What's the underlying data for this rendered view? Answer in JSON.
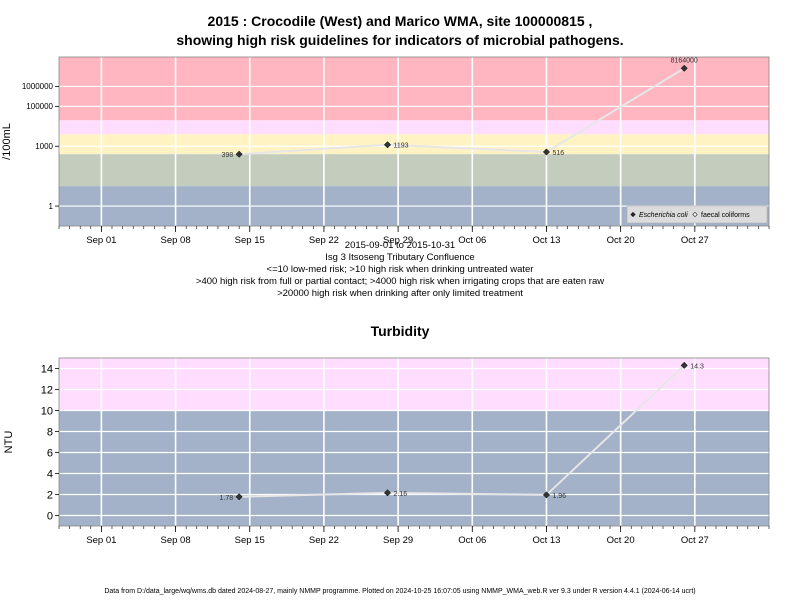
{
  "page": {
    "title_line1": "2015 : Crocodile (West) and Marico WMA, site 100000815 ,",
    "title_line2": "showing high risk guidelines for indicators of microbial pathogens.",
    "caption_lines": [
      "2015-09-01 to 2015-10-31",
      "Isg 3 Itsoseng Tributary Confluence",
      "<=10 low-med risk; >10 high risk when drinking untreated water",
      ">400 high risk from full or partial contact; >4000 high risk when irrigating crops that are eaten raw",
      ">20000 high risk when drinking after only limited treatment"
    ],
    "footer": "Data from D:/data_large/wq/wms.db dated 2024-08-27, mainly NMMP programme. Plotted on 2024-10-25 16:07:05 using NMMP_WMA_web.R ver 9.3 under R version 4.4.1 (2024-06-14 ucrt)"
  },
  "colors": {
    "band_red": "#ffb6c1",
    "band_pink": "#ffddff",
    "band_lightpink": "#fbe7f1",
    "band_yellow": "#fff3c4",
    "band_green": "#c3ccbd",
    "band_blue": "#a3b2c9",
    "series_line": "#e6e6e6",
    "marker": "#333333",
    "grid": "#ffffff"
  },
  "chart_data": [
    {
      "type": "line",
      "title": "",
      "xlabel": "",
      "ylabel": "/100mL",
      "yscale": "log",
      "ylim": [
        0.1,
        30000000
      ],
      "xlim": [
        "2015-08-28",
        "2015-11-03"
      ],
      "x_ticks": [
        "Sep 01",
        "Sep 08",
        "Sep 15",
        "Sep 22",
        "Sep 29",
        "Oct 06",
        "Oct 13",
        "Oct 20",
        "Oct 27"
      ],
      "x_tick_dates": [
        "2015-09-01",
        "2015-09-08",
        "2015-09-15",
        "2015-09-22",
        "2015-09-29",
        "2015-10-06",
        "2015-10-13",
        "2015-10-20",
        "2015-10-27"
      ],
      "y_ticks": [
        1,
        1000,
        100000,
        1000000
      ],
      "y_tick_labels": [
        "1",
        "1000",
        "100000",
        "1000000"
      ],
      "bands": [
        {
          "from": 20000,
          "to": 30000000,
          "color": "#ffb6c1"
        },
        {
          "from": 4000,
          "to": 20000,
          "color": "#ffddff"
        },
        {
          "from": 400,
          "to": 4000,
          "color": "#fff3c4"
        },
        {
          "from": 10,
          "to": 400,
          "color": "#c3ccbd"
        },
        {
          "from": 0.1,
          "to": 10,
          "color": "#a3b2c9"
        }
      ],
      "series": [
        {
          "name": "Escherichia coli",
          "marker": "filled-diamond",
          "x": [
            "2015-09-14",
            "2015-09-28",
            "2015-10-13",
            "2015-10-26"
          ],
          "values": [
            398,
            1193,
            516,
            8164000
          ],
          "labels": [
            "398",
            "1193",
            "516",
            "8164000"
          ]
        }
      ],
      "legend": {
        "position": "bottom-right",
        "items": [
          {
            "label": "Escherichia coli",
            "marker": "filled-diamond",
            "italic": true
          },
          {
            "label": "faecal coliforms",
            "marker": "open-diamond",
            "italic": false
          }
        ]
      },
      "grid": true
    },
    {
      "type": "line",
      "title": "Turbidity",
      "xlabel": "",
      "ylabel": "NTU",
      "yscale": "linear",
      "ylim": [
        -1,
        15
      ],
      "xlim": [
        "2015-08-28",
        "2015-11-03"
      ],
      "x_ticks": [
        "Sep 01",
        "Sep 08",
        "Sep 15",
        "Sep 22",
        "Sep 29",
        "Oct 06",
        "Oct 13",
        "Oct 20",
        "Oct 27"
      ],
      "x_tick_dates": [
        "2015-09-01",
        "2015-09-08",
        "2015-09-15",
        "2015-09-22",
        "2015-09-29",
        "2015-10-06",
        "2015-10-13",
        "2015-10-20",
        "2015-10-27"
      ],
      "y_ticks": [
        0,
        2,
        4,
        6,
        8,
        10,
        12,
        14
      ],
      "y_tick_labels": [
        "0",
        "2",
        "4",
        "6",
        "8",
        "10",
        "12",
        "14"
      ],
      "bands": [
        {
          "from": 10,
          "to": 15,
          "color": "#ffddff"
        },
        {
          "from": -1,
          "to": 10,
          "color": "#a3b2c9"
        }
      ],
      "series": [
        {
          "name": "",
          "marker": "filled-diamond",
          "x": [
            "2015-09-14",
            "2015-09-28",
            "2015-10-13",
            "2015-10-26"
          ],
          "values": [
            1.78,
            2.16,
            1.96,
            14.3
          ],
          "labels": [
            "1.78",
            "2.16",
            "1.96",
            "14.3"
          ]
        }
      ],
      "grid": true
    }
  ]
}
